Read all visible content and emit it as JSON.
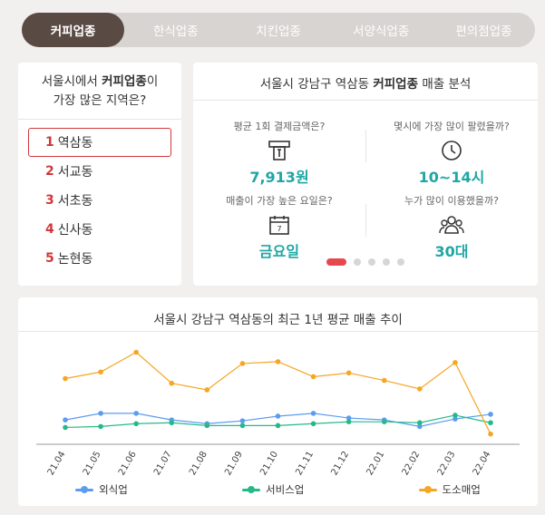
{
  "tabs": [
    "커피업종",
    "한식업종",
    "치킨업종",
    "서양식업종",
    "편의점업종"
  ],
  "left": {
    "title_pre": "서울시에서 ",
    "title_bold": "커피업종",
    "title_post": "이",
    "title_line2": "가장 많은 지역은?",
    "items": [
      {
        "rank": "1",
        "name": "역삼동"
      },
      {
        "rank": "2",
        "name": "서교동"
      },
      {
        "rank": "3",
        "name": "서초동"
      },
      {
        "rank": "4",
        "name": "신사동"
      },
      {
        "rank": "5",
        "name": "논현동"
      }
    ]
  },
  "right": {
    "title_pre": "서울시 강남구 역삼동 ",
    "title_bold": "커피업종",
    "title_post": " 매출 분석",
    "stats": [
      {
        "question": "평균 1회 결제금액은?",
        "value": "7,913원",
        "icon": "card-payment-icon"
      },
      {
        "question": "몇시에 가장 많이 팔렸을까?",
        "value": "10~14시",
        "icon": "clock-icon"
      },
      {
        "question": "매출이 가장 높은 요일은?",
        "value": "금요일",
        "icon": "calendar-icon"
      },
      {
        "question": "누가 많이 이용했을까?",
        "value": "30대",
        "icon": "people-icon"
      }
    ],
    "accent_color": "#1fa6a6"
  },
  "chart_data": {
    "type": "line",
    "title": "서울시 강남구 역삼동의 최근 1년 평균 매출 추이",
    "categories": [
      "21.04",
      "21.05",
      "21.06",
      "21.07",
      "21.08",
      "21.09",
      "21.10",
      "21.11",
      "21.12",
      "22.01",
      "22.02",
      "22.03",
      "22.04"
    ],
    "series": [
      {
        "name": "외식업",
        "color": "#5b9cf0",
        "values": [
          24,
          31,
          31,
          24,
          20,
          23,
          28,
          31,
          26,
          24,
          17,
          25,
          30
        ]
      },
      {
        "name": "서비스업",
        "color": "#25b98a",
        "values": [
          16,
          17,
          20,
          21,
          18,
          18,
          18,
          20,
          22,
          22,
          21,
          29,
          21
        ]
      },
      {
        "name": "도소매업",
        "color": "#f5a623",
        "values": [
          68,
          75,
          96,
          63,
          56,
          84,
          86,
          70,
          74,
          66,
          57,
          85,
          9
        ]
      }
    ],
    "ylim": [
      0,
      110
    ],
    "grid": false,
    "legend": "bottom"
  }
}
